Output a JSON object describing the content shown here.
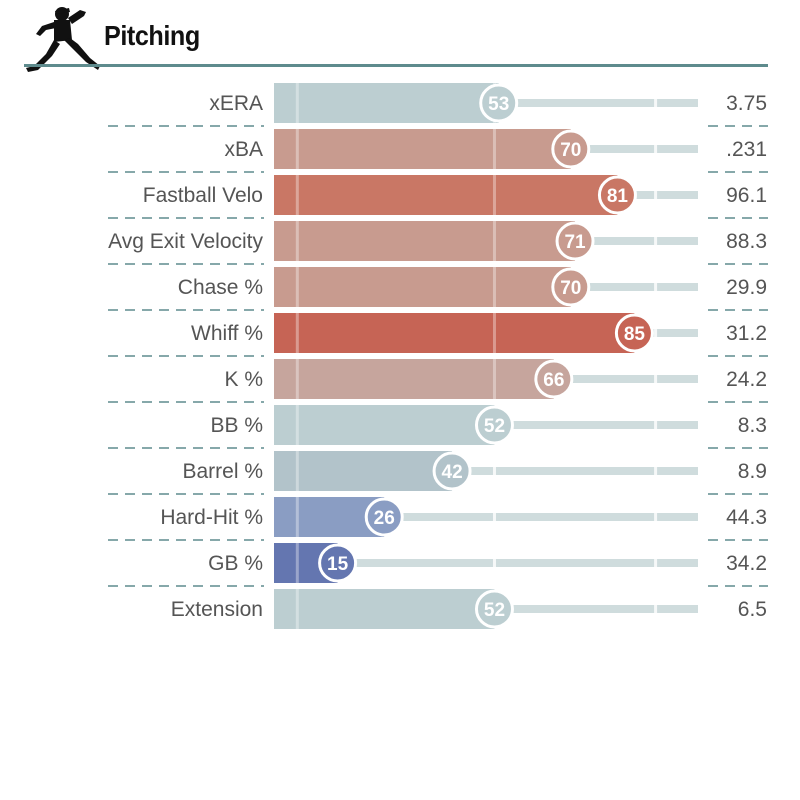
{
  "title": "Pitching",
  "icons": {
    "header": "pitcher-silhouette-icon"
  },
  "colors": {
    "rule": "#5e8b8d",
    "track": "#cfdcdd",
    "divider": "#5e8b8d"
  },
  "chart_data": {
    "type": "bar",
    "orientation": "horizontal",
    "title": "Pitching",
    "xlim": [
      0,
      100
    ],
    "grid": true,
    "legend": "none",
    "rows": [
      {
        "label": "xERA",
        "percentile": 53,
        "value": "3.75",
        "color": "#bcced1"
      },
      {
        "label": "xBA",
        "percentile": 70,
        "value": ".231",
        "color": "#c89b8f"
      },
      {
        "label": "Fastball Velo",
        "percentile": 81,
        "value": "96.1",
        "color": "#c97765"
      },
      {
        "label": "Avg Exit Velocity",
        "percentile": 71,
        "value": "88.3",
        "color": "#c89b8f"
      },
      {
        "label": "Chase %",
        "percentile": 70,
        "value": "29.9",
        "color": "#c89b8f"
      },
      {
        "label": "Whiff %",
        "percentile": 85,
        "value": "31.2",
        "color": "#c66455"
      },
      {
        "label": "K %",
        "percentile": 66,
        "value": "24.2",
        "color": "#c6a59d"
      },
      {
        "label": "BB %",
        "percentile": 52,
        "value": "8.3",
        "color": "#bcced1"
      },
      {
        "label": "Barrel %",
        "percentile": 42,
        "value": "8.9",
        "color": "#b2c3ca"
      },
      {
        "label": "Hard-Hit %",
        "percentile": 26,
        "value": "44.3",
        "color": "#8a9dc3"
      },
      {
        "label": "GB %",
        "percentile": 15,
        "value": "34.2",
        "color": "#6476b0"
      },
      {
        "label": "Extension",
        "percentile": 52,
        "value": "6.5",
        "color": "#bcced1"
      }
    ]
  }
}
